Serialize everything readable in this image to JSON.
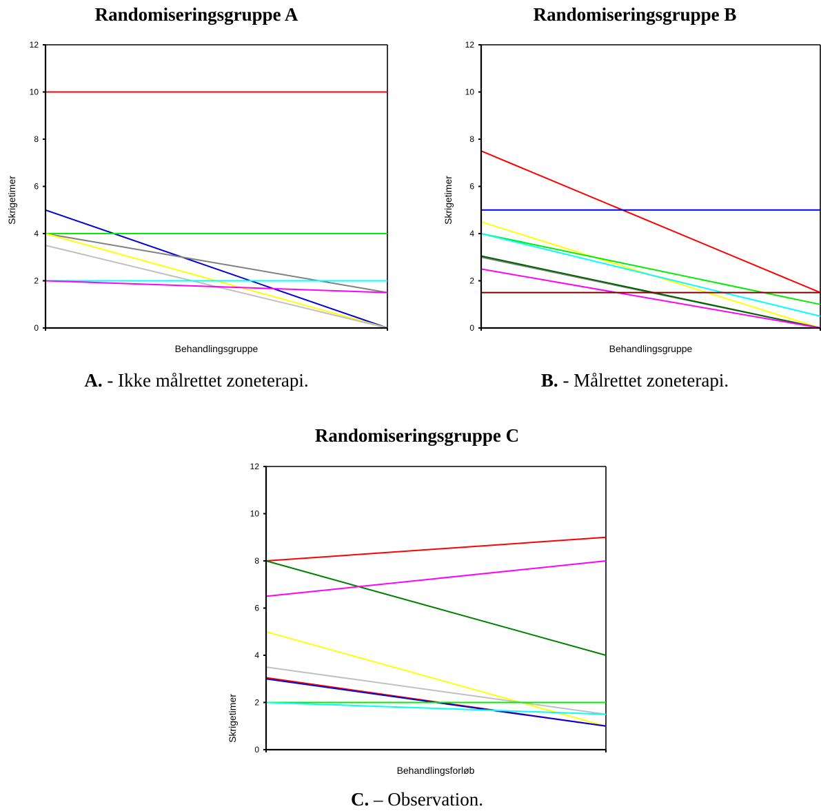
{
  "panels": [
    {
      "title": "Randomiseringsgruppe A",
      "caption_bold": "A.",
      "caption_text": " - Ikke målrettet zoneterapi."
    },
    {
      "title": "Randomiseringsgruppe B",
      "caption_bold": "B.",
      "caption_text": " - Målrettet zoneterapi."
    },
    {
      "title": "Randomiseringsgruppe C",
      "caption_bold": "C.",
      "caption_text": " – Observation."
    }
  ],
  "chart_data": [
    {
      "type": "line",
      "title": "Randomiseringsgruppe A",
      "xlabel": "Behandlingsgruppe",
      "ylabel": "Skrigetimer",
      "ylim": [
        0,
        12
      ],
      "yticks": [
        0,
        2,
        4,
        6,
        8,
        10,
        12
      ],
      "grid": false,
      "series": [
        {
          "color": "#ff0000",
          "values": [
            10,
            10
          ]
        },
        {
          "color": "#0000dd",
          "values": [
            5,
            0
          ]
        },
        {
          "color": "#00ee00",
          "values": [
            4,
            4
          ]
        },
        {
          "color": "#808080",
          "values": [
            4,
            1.5
          ]
        },
        {
          "color": "#ffff00",
          "values": [
            4,
            0
          ]
        },
        {
          "color": "#c0c0c0",
          "values": [
            3.5,
            0
          ]
        },
        {
          "color": "#00ffff",
          "values": [
            2,
            2
          ]
        },
        {
          "color": "#ff00ff",
          "values": [
            2,
            1.5
          ]
        }
      ]
    },
    {
      "type": "line",
      "title": "Randomiseringsgruppe B",
      "xlabel": "Behandlingsgruppe",
      "ylabel": "Skrigetimer",
      "ylim": [
        0,
        12
      ],
      "yticks": [
        0,
        2,
        4,
        6,
        8,
        10,
        12
      ],
      "grid": false,
      "series": [
        {
          "color": "#ff0000",
          "values": [
            7.5,
            1.5
          ]
        },
        {
          "color": "#0000dd",
          "values": [
            5,
            5
          ]
        },
        {
          "color": "#ffff00",
          "values": [
            4.5,
            0
          ]
        },
        {
          "color": "#00ee00",
          "values": [
            4,
            1
          ]
        },
        {
          "color": "#00ffff",
          "values": [
            4,
            0.5
          ]
        },
        {
          "color": "#808080",
          "values": [
            3,
            0
          ]
        },
        {
          "color": "#006400",
          "values": [
            3.05,
            0
          ]
        },
        {
          "color": "#ff00ff",
          "values": [
            2.5,
            0
          ]
        },
        {
          "color": "#800000",
          "values": [
            1.5,
            1.5
          ]
        }
      ]
    },
    {
      "type": "line",
      "title": "Randomiseringsgruppe C",
      "xlabel": "Behandlingsforløb",
      "ylabel": "Skrigetimer",
      "ylim": [
        0,
        12
      ],
      "yticks": [
        0,
        2,
        4,
        6,
        8,
        10,
        12
      ],
      "grid": false,
      "series": [
        {
          "color": "#ff0000",
          "values": [
            8,
            9
          ]
        },
        {
          "color": "#008000",
          "values": [
            8,
            4
          ]
        },
        {
          "color": "#ff00ff",
          "values": [
            6.5,
            8
          ]
        },
        {
          "color": "#ffff00",
          "values": [
            5,
            1
          ]
        },
        {
          "color": "#c0c0c0",
          "values": [
            3.5,
            1.5
          ]
        },
        {
          "color": "#ff0000",
          "values": [
            3.05,
            1
          ]
        },
        {
          "color": "#0000dd",
          "values": [
            3,
            1
          ]
        },
        {
          "color": "#00ee00",
          "values": [
            2,
            2
          ]
        },
        {
          "color": "#00ffff",
          "values": [
            2,
            1.5
          ]
        }
      ]
    }
  ]
}
